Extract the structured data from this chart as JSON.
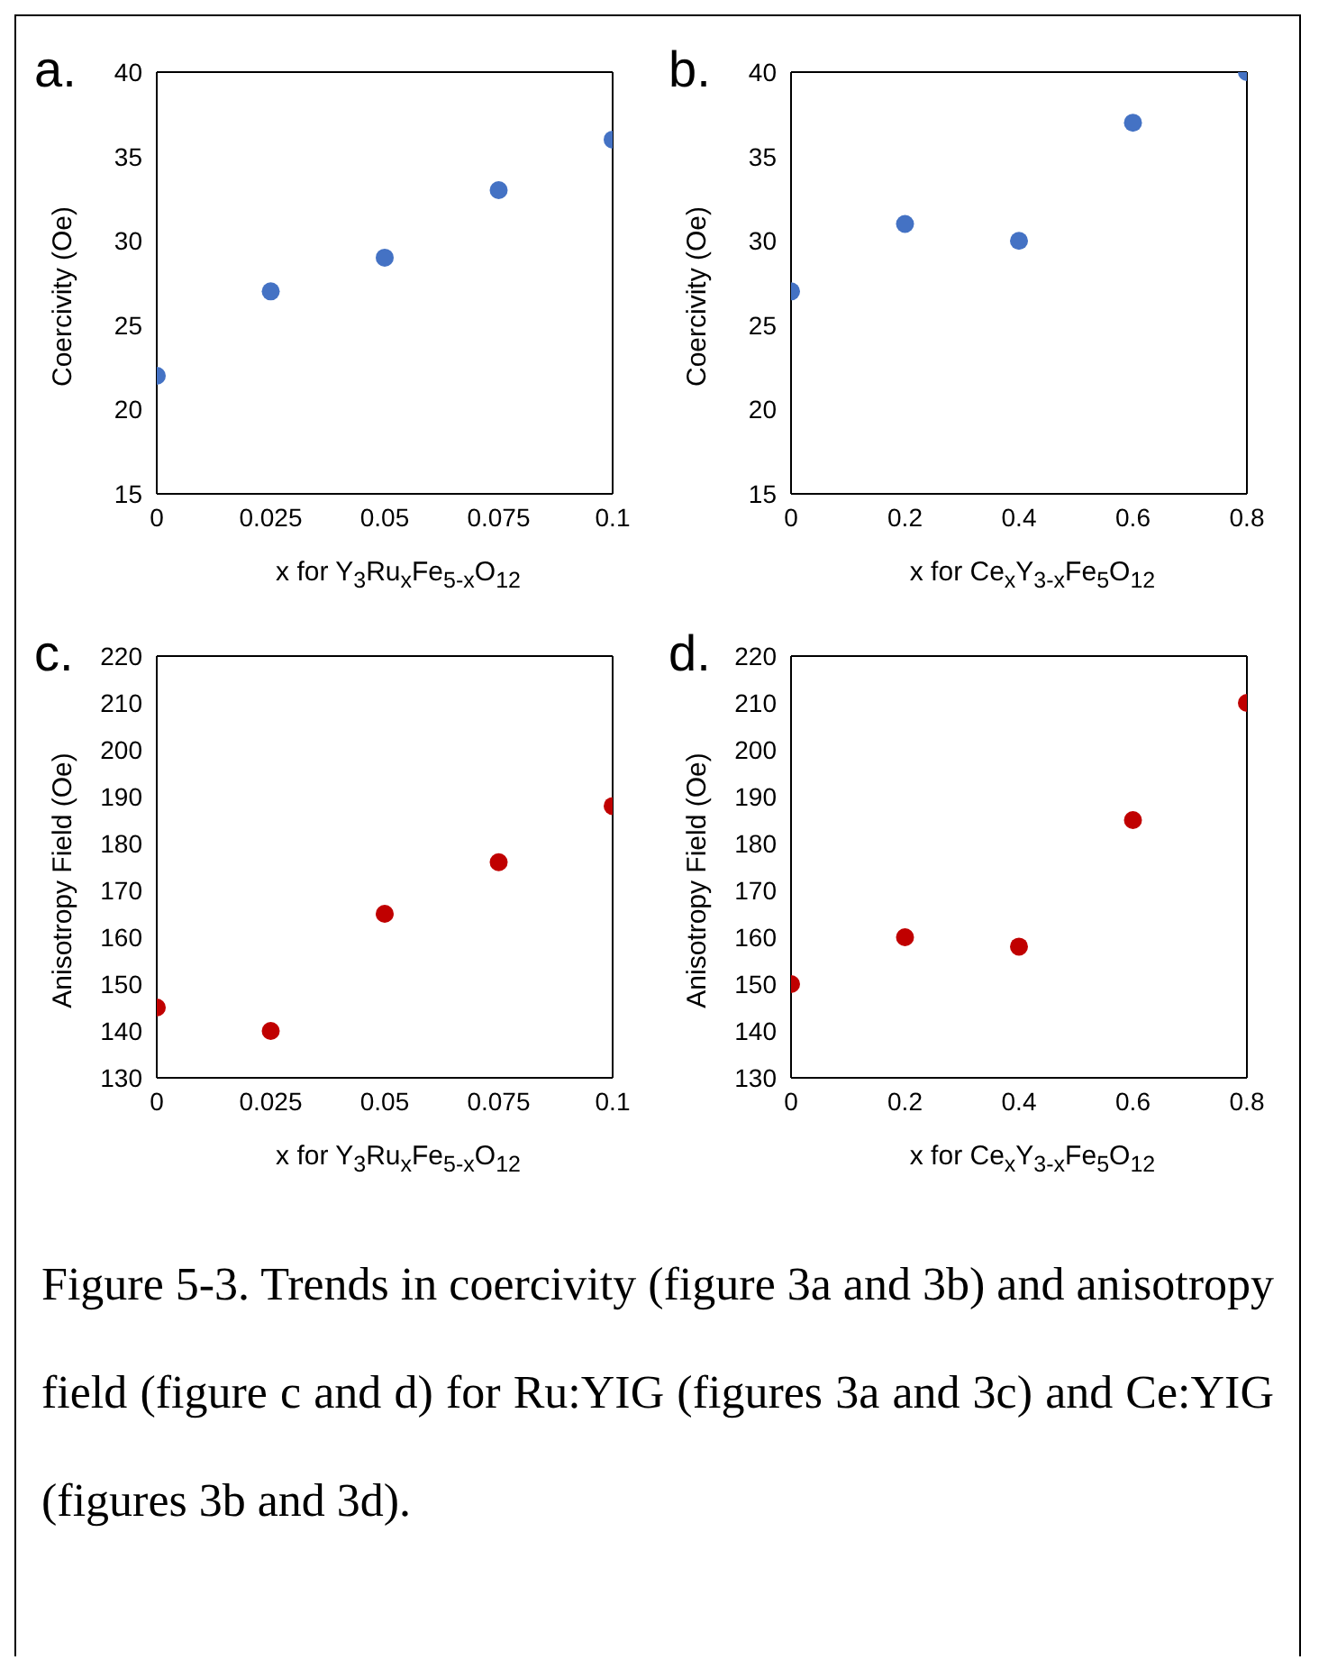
{
  "chart_data": [
    {
      "type": "scatter",
      "title": "a.",
      "xlabel": "x for Y$_{3}$Ru$_{x}$Fe$_{5-x}$O$_{12}$",
      "ylabel": "Coercivity (Oe)",
      "x": [
        0,
        0.025,
        0.05,
        0.075,
        0.1
      ],
      "values": [
        22,
        27,
        29,
        33,
        36
      ],
      "color": "#4472c4",
      "marker": "circle",
      "xlim": [
        0,
        0.1
      ],
      "xticks": [
        0,
        0.025,
        0.05,
        0.075,
        0.1
      ],
      "ylim": [
        15,
        40
      ],
      "yticks": [
        15,
        20,
        25,
        30,
        35,
        40
      ]
    },
    {
      "type": "scatter",
      "title": "b.",
      "xlabel": "x for Ce$_{x}$Y$_{3-x}$Fe$_{5}$O$_{12}$",
      "ylabel": "Coercivity (Oe)",
      "x": [
        0,
        0.2,
        0.4,
        0.6,
        0.8
      ],
      "values": [
        27,
        31,
        30,
        37,
        40
      ],
      "color": "#4472c4",
      "marker": "circle",
      "xlim": [
        0,
        0.8
      ],
      "xticks": [
        0,
        0.2,
        0.4,
        0.6,
        0.8
      ],
      "ylim": [
        15,
        40
      ],
      "yticks": [
        15,
        20,
        25,
        30,
        35,
        40
      ]
    },
    {
      "type": "scatter",
      "title": "c.",
      "xlabel": "x for Y$_{3}$Ru$_{x}$Fe$_{5-x}$O$_{12}$",
      "ylabel": "Anisotropy Field (Oe)",
      "x": [
        0,
        0.025,
        0.05,
        0.075,
        0.1
      ],
      "values": [
        145,
        140,
        165,
        176,
        188
      ],
      "color": "#c00000",
      "marker": "circle",
      "xlim": [
        0,
        0.1
      ],
      "xticks": [
        0,
        0.025,
        0.05,
        0.075,
        0.1
      ],
      "ylim": [
        130,
        220
      ],
      "yticks": [
        130,
        140,
        150,
        160,
        170,
        180,
        190,
        200,
        210,
        220
      ]
    },
    {
      "type": "scatter",
      "title": "d.",
      "xlabel": "x for Ce$_{x}$Y$_{3-x}$Fe$_{5}$O$_{12}$",
      "ylabel": "Anisotropy Field (Oe)",
      "x": [
        0,
        0.2,
        0.4,
        0.6,
        0.8
      ],
      "values": [
        150,
        160,
        158,
        185,
        210
      ],
      "color": "#c00000",
      "marker": "circle",
      "xlim": [
        0,
        0.8
      ],
      "xticks": [
        0,
        0.2,
        0.4,
        0.6,
        0.8
      ],
      "ylim": [
        130,
        220
      ],
      "yticks": [
        130,
        140,
        150,
        160,
        170,
        180,
        190,
        200,
        210,
        220
      ],
      "annotations": [
        "Figure 5-3. Trends in coercivity (figure 3a and 3b) and anisotropy field (figure c and d) for Ru:YIG (figures 3a and 3c) and Ce:YIG (figures 3b and 3d)."
      ]
    }
  ]
}
